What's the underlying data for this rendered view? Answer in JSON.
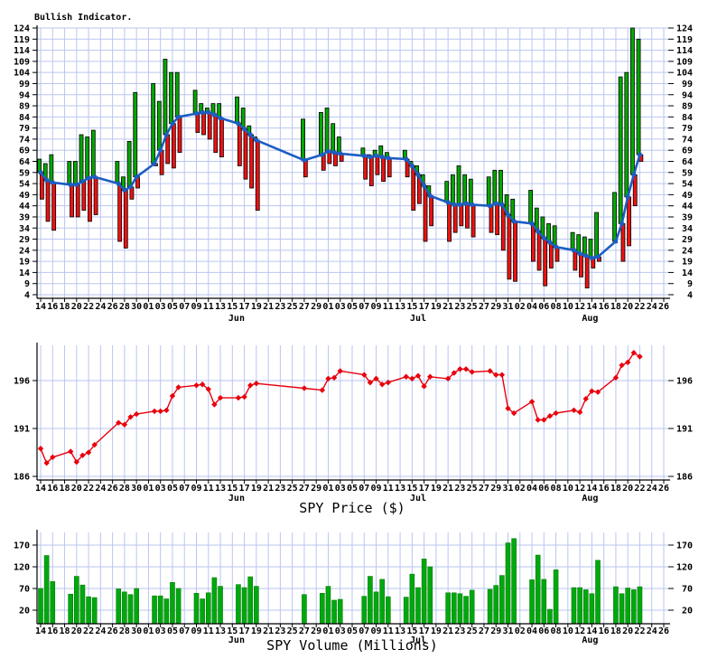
{
  "colors": {
    "bull_bar": "#00a800",
    "bear_bar": "#ee1111",
    "ma_line": "#1c5dc4",
    "price_line": "#e8000d",
    "volume_bar": "#00a810",
    "grid": "#bac6ef",
    "axis": "#000000",
    "background": "#ffffff"
  },
  "top_chart": {
    "title": "Bullish Indicator."
  },
  "price_chart": {
    "title": "SPY Price ($)"
  },
  "volume_chart": {
    "title": "SPY Volume (Millions)"
  },
  "chart_data": {
    "type": "multi-panel",
    "panels": [
      {
        "id": "indicator",
        "type": "bar+line",
        "title": "Bullish Indicator.",
        "ylim": [
          4,
          124
        ],
        "grid": true,
        "legend_position": "none",
        "yticks": [
          124,
          119,
          114,
          109,
          104,
          99,
          94,
          89,
          84,
          79,
          74,
          69,
          64,
          59,
          54,
          49,
          44,
          39,
          34,
          29,
          24,
          19,
          14,
          9,
          4
        ],
        "series_legend": [
          "bull range bar (ma to high, green)",
          "bear range bar (low to ma, red)",
          "moving-average line (blue)"
        ]
      },
      {
        "id": "price",
        "type": "line",
        "title": "SPY Price ($)",
        "ylim": [
          185,
          200
        ],
        "grid": true,
        "yticks": [
          196,
          191,
          186
        ],
        "series_legend": [
          "SPY close price (red line with diamond markers)"
        ]
      },
      {
        "id": "volume",
        "type": "bar",
        "title": "SPY Volume (Millions)",
        "ylim": [
          0,
          200
        ],
        "grid": true,
        "yticks": [
          170,
          120,
          70,
          20
        ],
        "series_legend": [
          "SPY daily volume (green bars)"
        ]
      }
    ],
    "columns": [
      "date",
      "day_offset",
      "ind_high",
      "ind_low",
      "ind_ma",
      "spy_price",
      "spy_volume_millions"
    ],
    "rows": [
      [
        "May 14",
        0,
        65,
        47,
        59,
        188.9,
        70
      ],
      [
        "May 15",
        1,
        63,
        37,
        55.5,
        187.4,
        146
      ],
      [
        "May 16",
        2,
        67,
        33,
        54.5,
        188.0,
        86
      ],
      [
        "May 19",
        5,
        64,
        39,
        53.5,
        188.6,
        57
      ],
      [
        "May 20",
        6,
        64,
        39,
        53.5,
        187.5,
        98
      ],
      [
        "May 21",
        7,
        76,
        42,
        55,
        188.2,
        78
      ],
      [
        "May 22",
        8,
        75,
        37,
        56.5,
        188.5,
        51
      ],
      [
        "May 23",
        9,
        78,
        40,
        57,
        189.3,
        49
      ],
      [
        "May 27",
        13,
        64,
        28,
        54,
        191.6,
        69
      ],
      [
        "May 28",
        14,
        57,
        25,
        51,
        191.4,
        62
      ],
      [
        "May 29",
        15,
        73,
        47,
        52.5,
        192.2,
        56
      ],
      [
        "May 30",
        16,
        95,
        52,
        57,
        192.5,
        70
      ],
      [
        "Jun 02",
        19,
        99,
        62,
        63,
        192.8,
        53
      ],
      [
        "Jun 03",
        20,
        91,
        58,
        69,
        192.8,
        53
      ],
      [
        "Jun 04",
        21,
        110,
        63,
        76,
        192.9,
        46
      ],
      [
        "Jun 05",
        22,
        104,
        61,
        81,
        194.4,
        84
      ],
      [
        "Jun 06",
        23,
        104,
        68,
        84,
        195.3,
        70
      ],
      [
        "Jun 09",
        26,
        96,
        77,
        85.5,
        195.5,
        59
      ],
      [
        "Jun 10",
        27,
        90,
        76,
        86,
        195.6,
        46
      ],
      [
        "Jun 11",
        28,
        88,
        74,
        86,
        195.1,
        60
      ],
      [
        "Jun 12",
        29,
        90,
        68,
        85,
        193.5,
        95
      ],
      [
        "Jun 13",
        30,
        90,
        66,
        83.5,
        194.2,
        75
      ],
      [
        "Jun 16",
        33,
        93,
        62,
        81,
        194.2,
        79
      ],
      [
        "Jun 17",
        34,
        88,
        56,
        78.5,
        194.3,
        72
      ],
      [
        "Jun 18",
        35,
        80,
        52,
        76,
        195.5,
        97
      ],
      [
        "Jun 19",
        36,
        75,
        42,
        73.5,
        195.7,
        75
      ],
      [
        "Jun 27",
        44,
        83,
        57,
        64.5,
        195.2,
        56
      ],
      [
        "Jun 30",
        47,
        86,
        60,
        67,
        195.0,
        59
      ],
      [
        "Jul 01",
        48,
        88,
        63,
        68.5,
        196.2,
        75
      ],
      [
        "Jul 02",
        49,
        81,
        62,
        68,
        196.3,
        43
      ],
      [
        "Jul 03",
        50,
        75,
        64,
        67.5,
        197.0,
        45
      ],
      [
        "Jul 07",
        54,
        70,
        56,
        66.5,
        196.6,
        52
      ],
      [
        "Jul 08",
        55,
        67,
        53,
        66,
        195.8,
        98
      ],
      [
        "Jul 09",
        56,
        69,
        58,
        66.5,
        196.2,
        62
      ],
      [
        "Jul 10",
        57,
        71,
        55,
        66,
        195.6,
        91
      ],
      [
        "Jul 11",
        58,
        68,
        57,
        65.5,
        195.8,
        51
      ],
      [
        "Jul 14",
        61,
        69,
        57,
        65,
        196.4,
        50
      ],
      [
        "Jul 15",
        62,
        64,
        42,
        62,
        196.2,
        103
      ],
      [
        "Jul 16",
        63,
        62,
        45,
        58,
        196.5,
        72
      ],
      [
        "Jul 17",
        64,
        58,
        28,
        53,
        195.4,
        138
      ],
      [
        "Jul 18",
        65,
        53,
        35,
        48.5,
        196.4,
        120
      ],
      [
        "Jul 21",
        68,
        55,
        28,
        45.5,
        196.2,
        60
      ],
      [
        "Jul 22",
        69,
        58,
        32,
        44.5,
        196.8,
        60
      ],
      [
        "Jul 23",
        70,
        62,
        35,
        44.5,
        197.2,
        58
      ],
      [
        "Jul 24",
        71,
        58,
        34,
        45,
        197.2,
        52
      ],
      [
        "Jul 25",
        72,
        56,
        30,
        44.5,
        196.9,
        66
      ],
      [
        "Jul 28",
        75,
        57,
        32,
        44,
        197.0,
        68
      ],
      [
        "Jul 29",
        76,
        60,
        31,
        45,
        196.6,
        77
      ],
      [
        "Jul 30",
        77,
        60,
        24,
        44.5,
        196.6,
        100
      ],
      [
        "Jul 31",
        78,
        49,
        11,
        40,
        193.1,
        175
      ],
      [
        "Aug 01",
        79,
        47,
        10,
        37,
        192.6,
        185
      ],
      [
        "Aug 04",
        82,
        51,
        19,
        36,
        193.8,
        90
      ],
      [
        "Aug 05",
        83,
        43,
        15,
        32.5,
        191.9,
        147
      ],
      [
        "Aug 06",
        84,
        39,
        8,
        29.5,
        191.9,
        91
      ],
      [
        "Aug 07",
        85,
        36,
        16,
        27.5,
        192.3,
        22
      ],
      [
        "Aug 08",
        86,
        35,
        19,
        25.5,
        192.6,
        113
      ],
      [
        "Aug 11",
        89,
        32,
        15,
        24,
        192.9,
        72
      ],
      [
        "Aug 12",
        90,
        31,
        12,
        22.5,
        192.7,
        72
      ],
      [
        "Aug 13",
        91,
        30,
        7,
        21.5,
        194.1,
        67
      ],
      [
        "Aug 14",
        92,
        29,
        16,
        20.5,
        194.9,
        58
      ],
      [
        "Aug 15",
        93,
        41,
        19,
        21,
        194.8,
        135
      ],
      [
        "Aug 18",
        96,
        50,
        28,
        28,
        196.3,
        74
      ],
      [
        "Aug 19",
        97,
        102,
        19,
        36,
        197.6,
        58
      ],
      [
        "Aug 20",
        98,
        104,
        26,
        48,
        197.9,
        71
      ],
      [
        "Aug 21",
        99,
        124,
        44,
        58,
        198.9,
        67
      ],
      [
        "Aug 22",
        100,
        119,
        64,
        67,
        198.5,
        74
      ]
    ],
    "x_tick_labels": [
      "14",
      "16",
      "18",
      "20",
      "22",
      "24",
      "26",
      "28",
      "30",
      "01",
      "03",
      "05",
      "07",
      "09",
      "11",
      "13",
      "15",
      "17",
      "19",
      "21",
      "23",
      "25",
      "27",
      "29",
      "01",
      "03",
      "05",
      "07",
      "09",
      "11",
      "13",
      "15",
      "17",
      "19",
      "21",
      "23",
      "25",
      "27",
      "29",
      "31",
      "02",
      "04",
      "06",
      "08",
      "10",
      "12",
      "14",
      "16",
      "18",
      "20",
      "22",
      "24",
      "26"
    ],
    "months": [
      {
        "label": "Jun",
        "offset": 32.7
      },
      {
        "label": "Jul",
        "offset": 63.0
      },
      {
        "label": "Aug",
        "offset": 91.7
      }
    ]
  }
}
